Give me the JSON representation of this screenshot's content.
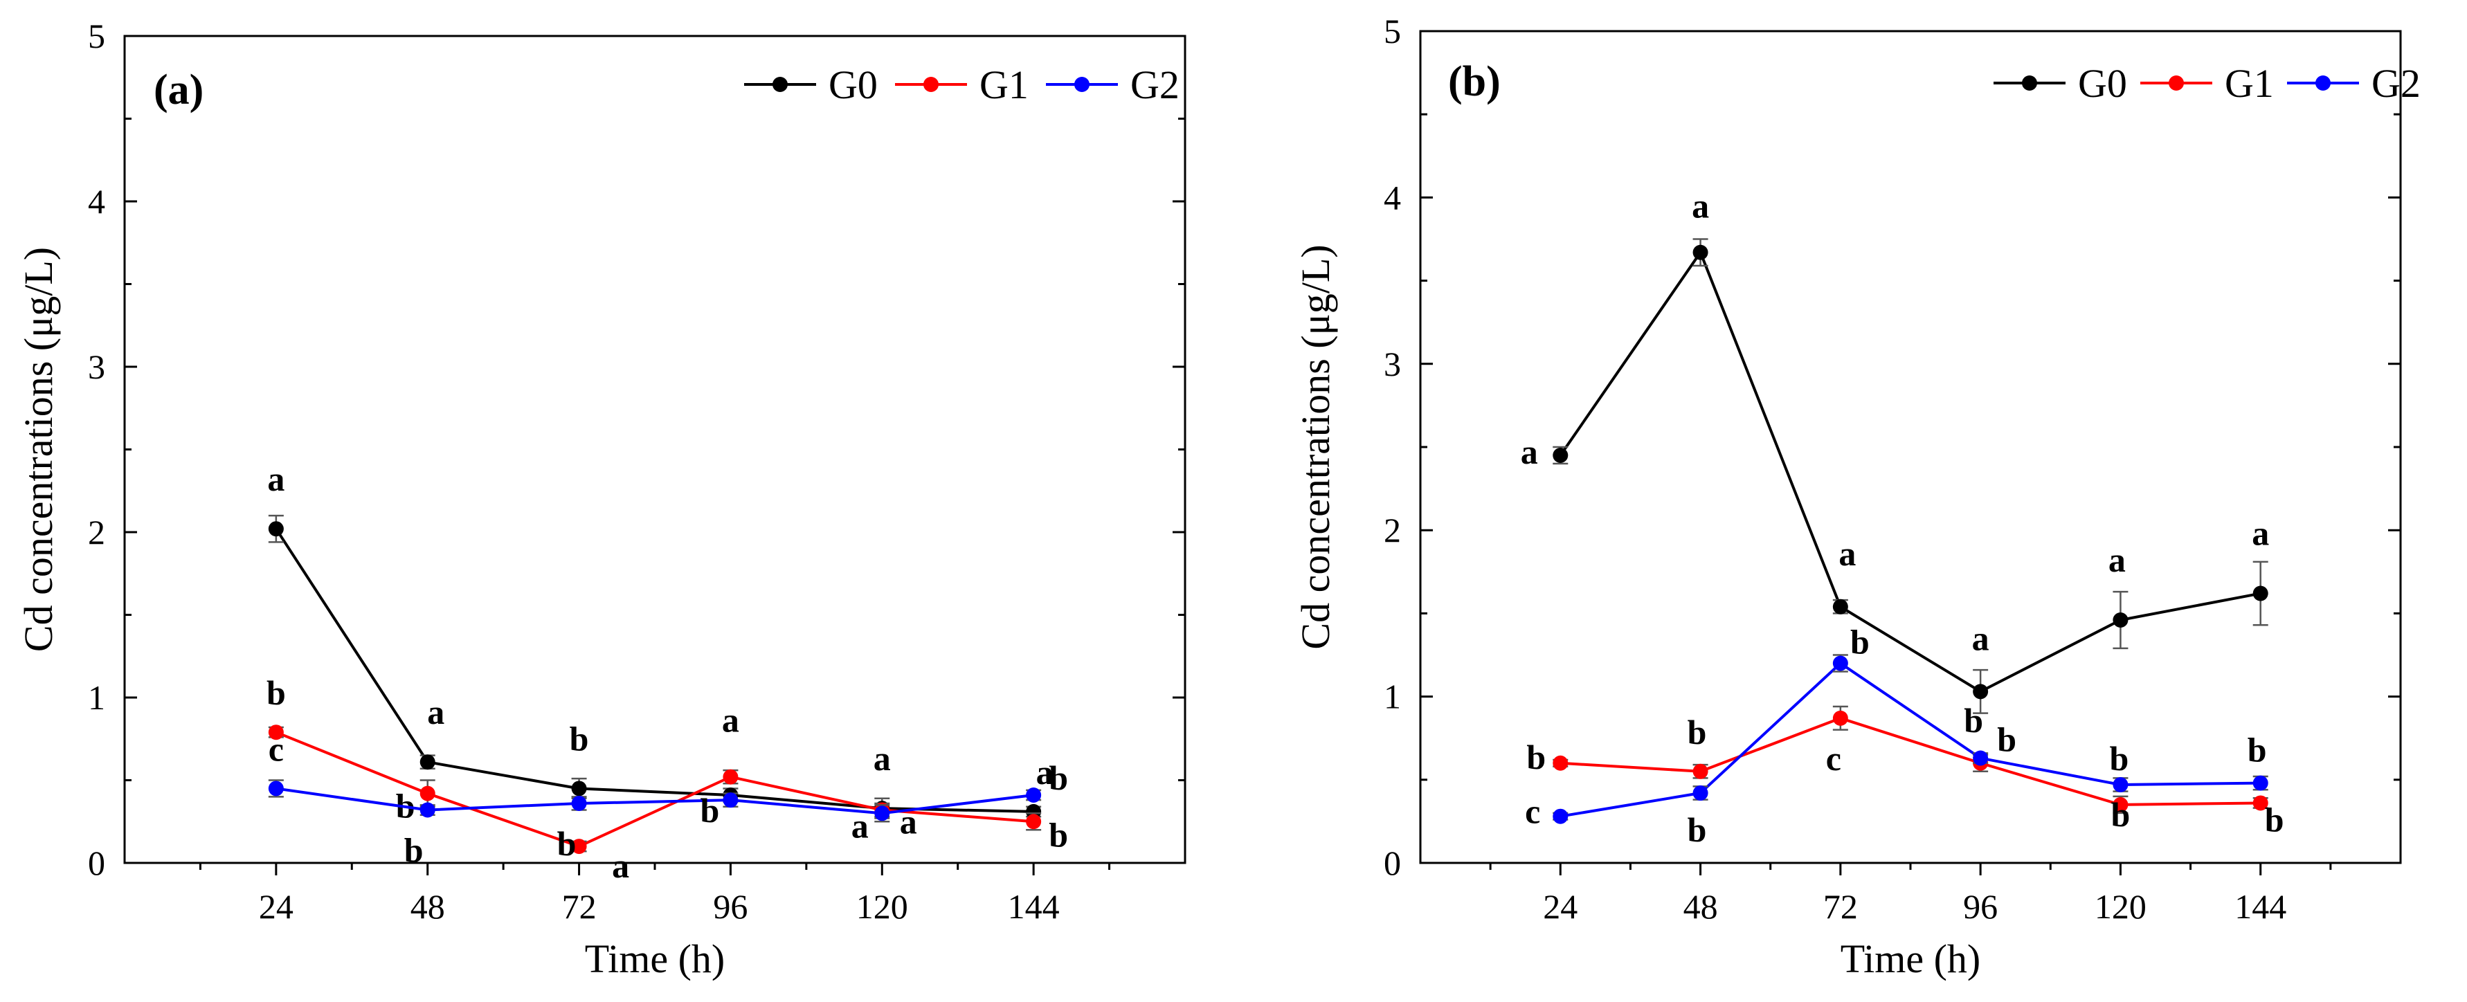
{
  "chart_data": [
    {
      "type": "line",
      "panel_label": "(a)",
      "xlabel": "Time (h)",
      "ylabel": "Cd concentrations (μg/L)",
      "x": [
        24,
        48,
        72,
        96,
        120,
        144
      ],
      "xticks": [
        "24",
        "48",
        "72",
        "96",
        "120",
        "144"
      ],
      "yticks": [
        "0",
        "1",
        "2",
        "3",
        "4",
        "5"
      ],
      "ylim": [
        0,
        5
      ],
      "legend_position": "top-right",
      "series": [
        {
          "name": "G0",
          "color": "#000000",
          "values": [
            2.02,
            0.61,
            0.45,
            0.41,
            0.33,
            0.31
          ],
          "errors": [
            0.08,
            0.04,
            0.06,
            0.04,
            0.06,
            0.03
          ],
          "labels": [
            "a",
            "a",
            "b",
            "",
            "a",
            "a"
          ]
        },
        {
          "name": "G1",
          "color": "#ff0000",
          "values": [
            0.79,
            0.42,
            0.1,
            0.52,
            0.32,
            0.25
          ],
          "errors": [
            0.03,
            0.08,
            0.03,
            0.04,
            0.04,
            0.05
          ],
          "labels": [
            "b",
            "b",
            "a",
            "a",
            "a",
            "b"
          ]
        },
        {
          "name": "G2",
          "color": "#0000ff",
          "values": [
            0.45,
            0.32,
            0.36,
            0.38,
            0.3,
            0.41
          ],
          "errors": [
            0.05,
            0.03,
            0.04,
            0.04,
            0.05,
            0.03
          ],
          "labels": [
            "c",
            "b",
            "b",
            "b",
            "a",
            "b"
          ]
        }
      ]
    },
    {
      "type": "line",
      "panel_label": "(b)",
      "xlabel": "Time (h)",
      "ylabel": "Cd concentrations (μg/L)",
      "x": [
        24,
        48,
        72,
        96,
        120,
        144
      ],
      "xticks": [
        "24",
        "48",
        "72",
        "96",
        "120",
        "144"
      ],
      "yticks": [
        "0",
        "1",
        "2",
        "3",
        "4",
        "5"
      ],
      "ylim": [
        0,
        5
      ],
      "legend_position": "top-right",
      "series": [
        {
          "name": "G0",
          "color": "#000000",
          "values": [
            2.45,
            3.67,
            1.54,
            1.03,
            1.46,
            1.62
          ],
          "errors": [
            0.05,
            0.08,
            0.04,
            0.13,
            0.17,
            0.19
          ],
          "labels": [
            "a",
            "a",
            "a",
            "a",
            "a",
            "a"
          ]
        },
        {
          "name": "G1",
          "color": "#ff0000",
          "values": [
            0.6,
            0.55,
            0.87,
            0.6,
            0.35,
            0.36
          ],
          "errors": [
            0.02,
            0.04,
            0.07,
            0.05,
            0.05,
            0.03
          ],
          "labels": [
            "b",
            "b",
            "c",
            "b",
            "b",
            "b"
          ]
        },
        {
          "name": "G2",
          "color": "#0000ff",
          "values": [
            0.28,
            0.42,
            1.2,
            0.63,
            0.47,
            0.48
          ],
          "errors": [
            0.02,
            0.04,
            0.05,
            0.03,
            0.04,
            0.04
          ],
          "labels": [
            "c",
            "b",
            "b",
            "b",
            "b",
            "b"
          ]
        }
      ]
    }
  ]
}
